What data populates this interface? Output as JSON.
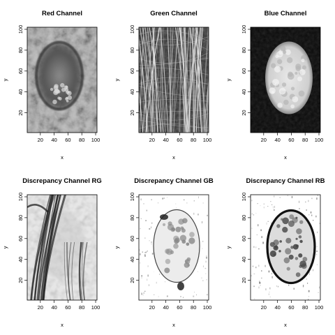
{
  "figure": {
    "panels": [
      {
        "title": "Red Channel",
        "xlabel": "x",
        "ylabel": "y",
        "xticks": [
          "20",
          "40",
          "60",
          "80",
          "100"
        ],
        "yticks": [
          "20",
          "40",
          "60",
          "80",
          "100"
        ],
        "xlim": [
          1,
          102
        ],
        "ylim": [
          1,
          102
        ],
        "image_kind": "red"
      },
      {
        "title": "Green Channel",
        "xlabel": "x",
        "ylabel": "y",
        "xticks": [
          "20",
          "40",
          "60",
          "80",
          "100"
        ],
        "yticks": [
          "20",
          "40",
          "60",
          "80",
          "100"
        ],
        "xlim": [
          1,
          102
        ],
        "ylim": [
          1,
          102
        ],
        "image_kind": "green"
      },
      {
        "title": "Blue Channel",
        "xlabel": "x",
        "ylabel": "y",
        "xticks": [
          "20",
          "40",
          "60",
          "80",
          "100"
        ],
        "yticks": [
          "20",
          "40",
          "60",
          "80",
          "100"
        ],
        "xlim": [
          1,
          102
        ],
        "ylim": [
          1,
          102
        ],
        "image_kind": "blue"
      },
      {
        "title": "Discrepancy Channel RG",
        "xlabel": "x",
        "ylabel": "y",
        "xticks": [
          "20",
          "40",
          "60",
          "80",
          "100"
        ],
        "yticks": [
          "20",
          "40",
          "60",
          "80",
          "100"
        ],
        "xlim": [
          1,
          102
        ],
        "ylim": [
          1,
          102
        ],
        "image_kind": "rg"
      },
      {
        "title": "Discrepancy Channel GB",
        "xlabel": "x",
        "ylabel": "y",
        "xticks": [
          "20",
          "40",
          "60",
          "80",
          "100"
        ],
        "yticks": [
          "20",
          "40",
          "60",
          "80",
          "100"
        ],
        "xlim": [
          1,
          102
        ],
        "ylim": [
          1,
          102
        ],
        "image_kind": "gb"
      },
      {
        "title": "Discrepancy Channel RB",
        "xlabel": "x",
        "ylabel": "y",
        "xticks": [
          "20",
          "40",
          "60",
          "80",
          "100"
        ],
        "yticks": [
          "20",
          "40",
          "60",
          "80",
          "100"
        ],
        "xlim": [
          1,
          102
        ],
        "ylim": [
          1,
          102
        ],
        "image_kind": "rb"
      }
    ]
  }
}
